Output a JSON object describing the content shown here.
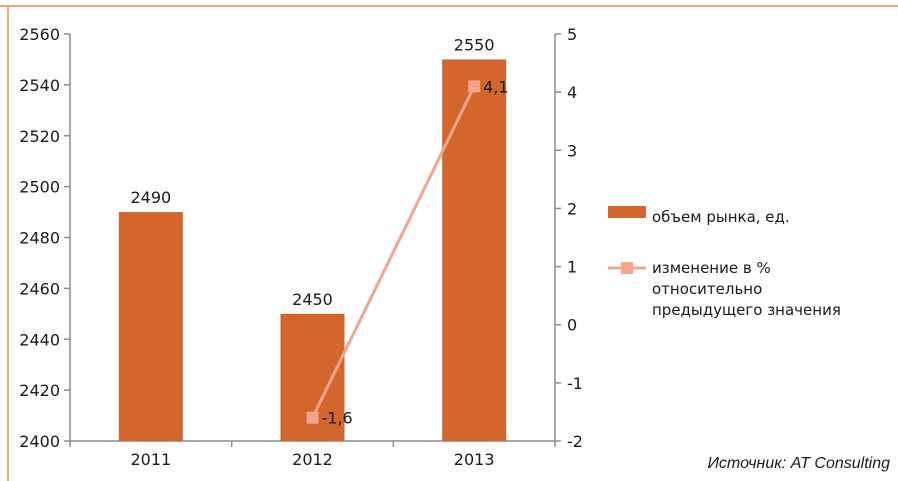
{
  "source": "Источник: AT Consulting",
  "colors": {
    "frame": "#f0a57c",
    "bar": "#d2662d",
    "line": "#f4a48c",
    "axis": "#8c8c8c"
  },
  "chart_data": {
    "type": "bar",
    "categories": [
      "2011",
      "2012",
      "2013"
    ],
    "series": [
      {
        "name": "объем рынка, ед.",
        "type": "bar",
        "axis": "left",
        "values": [
          2490,
          2450,
          2550
        ],
        "labels": [
          "2490",
          "2450",
          "2550"
        ]
      },
      {
        "name": "изменение в % относительно предыдущего значения",
        "type": "line",
        "axis": "right",
        "x": [
          "2012",
          "2013"
        ],
        "values": [
          -1.6,
          4.1
        ],
        "labels": [
          "-1,6",
          "4,1"
        ]
      }
    ],
    "y_left": {
      "ylim": [
        2400,
        2560
      ],
      "ticks": [
        "2400",
        "2420",
        "2440",
        "2460",
        "2480",
        "2500",
        "2520",
        "2540",
        "2560"
      ]
    },
    "y_right": {
      "ylim": [
        -2,
        5
      ],
      "ticks": [
        "-2",
        "-1",
        "0",
        "1",
        "2",
        "3",
        "4",
        "5"
      ]
    },
    "grid": false,
    "legend": "right"
  }
}
